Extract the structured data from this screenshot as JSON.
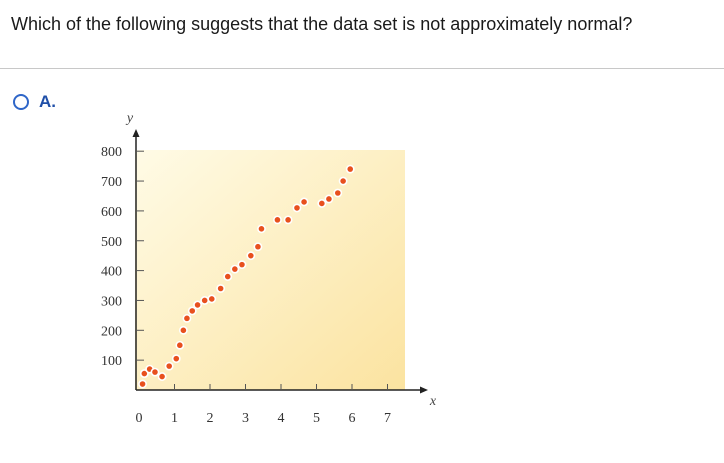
{
  "question": {
    "text": "Which of the following suggests that the data set is not approximately normal?"
  },
  "options": [
    {
      "id": "A",
      "label": "A.",
      "selected": false
    }
  ],
  "colors": {
    "radio_border": "#2f66c8",
    "option_label": "#1f4fa8",
    "point_fill": "#e8501e",
    "plot_bg_light": "#fffbe6",
    "plot_bg_dark": "#fbe3a0"
  },
  "chart_data": {
    "type": "scatter",
    "xlabel": "x",
    "ylabel": "y",
    "xlim": [
      0,
      7.5
    ],
    "ylim": [
      0,
      900
    ],
    "xticks": [
      "0",
      "1",
      "2",
      "3",
      "4",
      "5",
      "6",
      "7"
    ],
    "yticks": [
      "100",
      "200",
      "300",
      "400",
      "500",
      "600",
      "700",
      "800"
    ],
    "grid": false,
    "points": [
      [
        0.1,
        20
      ],
      [
        0.15,
        55
      ],
      [
        0.3,
        70
      ],
      [
        0.45,
        60
      ],
      [
        0.65,
        45
      ],
      [
        0.85,
        80
      ],
      [
        1.05,
        105
      ],
      [
        1.15,
        150
      ],
      [
        1.25,
        200
      ],
      [
        1.35,
        240
      ],
      [
        1.5,
        265
      ],
      [
        1.65,
        285
      ],
      [
        1.85,
        300
      ],
      [
        2.05,
        305
      ],
      [
        2.3,
        340
      ],
      [
        2.5,
        380
      ],
      [
        2.7,
        405
      ],
      [
        2.9,
        420
      ],
      [
        3.15,
        450
      ],
      [
        3.35,
        480
      ],
      [
        3.45,
        540
      ],
      [
        3.9,
        570
      ],
      [
        4.2,
        570
      ],
      [
        4.45,
        610
      ],
      [
        4.65,
        630
      ],
      [
        5.15,
        625
      ],
      [
        5.35,
        640
      ],
      [
        5.6,
        660
      ],
      [
        5.75,
        700
      ],
      [
        5.95,
        740
      ]
    ]
  }
}
